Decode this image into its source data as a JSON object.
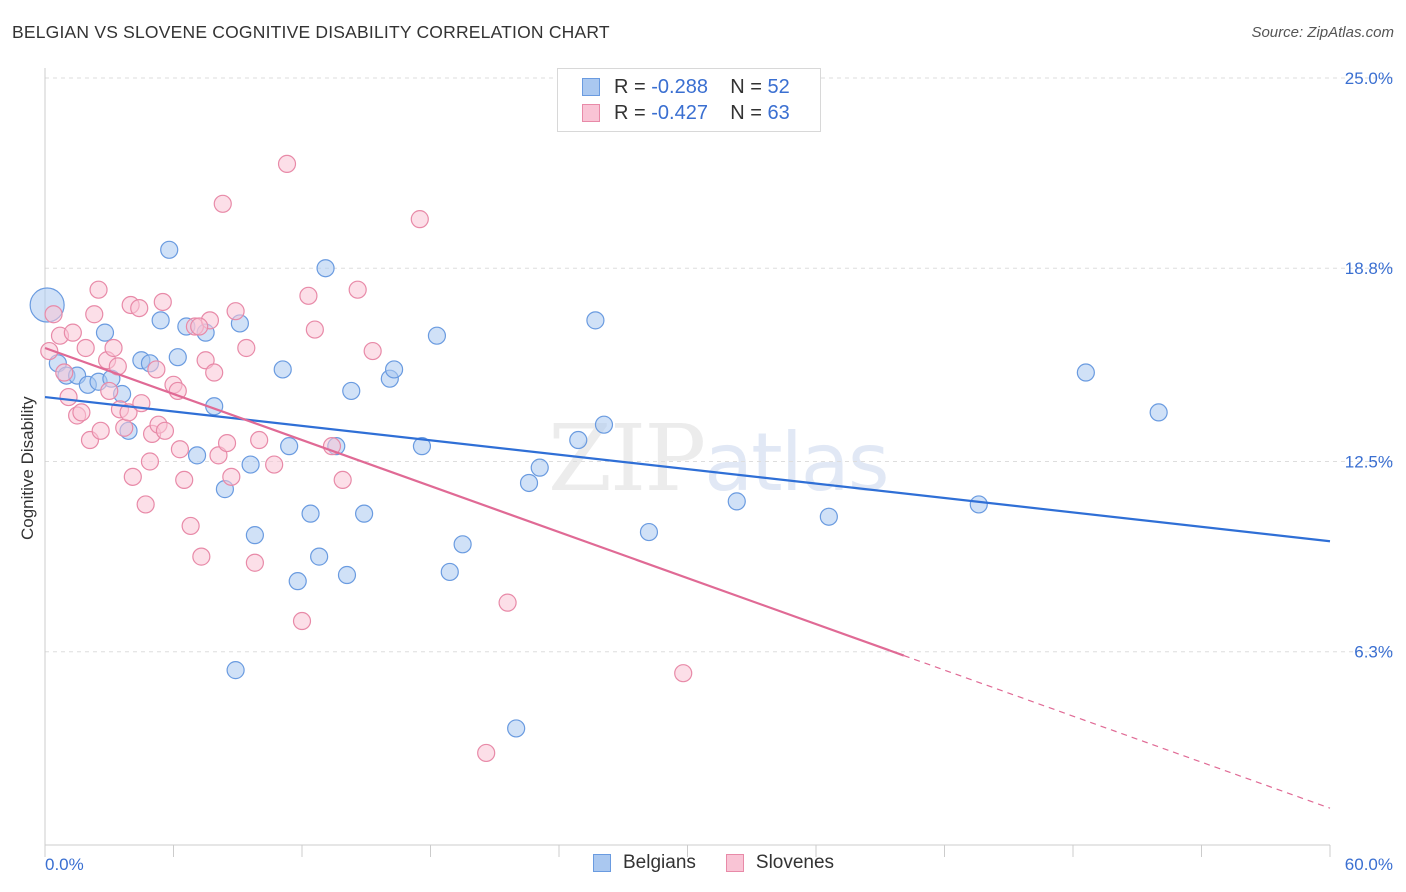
{
  "header": {
    "title": "BELGIAN VS SLOVENE COGNITIVE DISABILITY CORRELATION CHART",
    "source": "Source: ZipAtlas.com"
  },
  "legend": {
    "rows": [
      {
        "r_label": "R =",
        "r_value": "-0.288",
        "n_label": "N =",
        "n_value": "52",
        "color": "#aac8f0",
        "border": "#6a9be0"
      },
      {
        "r_label": "R =",
        "r_value": "-0.427",
        "n_label": "N =",
        "n_value": "63",
        "color": "#f9c4d5",
        "border": "#e88aa8"
      }
    ]
  },
  "bottom_legend": [
    "Belgians",
    "Slovenes"
  ],
  "watermark": {
    "zip": "ZIP",
    "atlas": "atlas"
  },
  "chart_data": {
    "type": "scatter",
    "title": "BELGIAN VS SLOVENE COGNITIVE DISABILITY CORRELATION CHART",
    "xlabel": "",
    "ylabel": "Cognitive Disability",
    "xlim": [
      0,
      60
    ],
    "ylim": [
      0,
      25
    ],
    "x_tick_labels": [
      "0.0%",
      "60.0%"
    ],
    "y_ticks": [
      6.3,
      12.5,
      18.8,
      25.0
    ],
    "y_tick_labels": [
      "6.3%",
      "12.5%",
      "18.8%",
      "25.0%"
    ],
    "grid": "horizontal dashed",
    "series": [
      {
        "name": "Belgians",
        "color": "#6a9be0",
        "fill": "#aac8f0",
        "trend": {
          "x0": 0,
          "y0": 14.6,
          "x1": 60,
          "y1": 9.9,
          "dashed_from": null
        },
        "points": [
          [
            0.1,
            17.6
          ],
          [
            0.6,
            15.7
          ],
          [
            1.0,
            15.3
          ],
          [
            1.5,
            15.3
          ],
          [
            2.0,
            15.0
          ],
          [
            2.5,
            15.1
          ],
          [
            2.8,
            16.7
          ],
          [
            3.1,
            15.2
          ],
          [
            3.6,
            14.7
          ],
          [
            3.9,
            13.5
          ],
          [
            4.5,
            15.8
          ],
          [
            4.9,
            15.7
          ],
          [
            5.4,
            17.1
          ],
          [
            5.8,
            19.4
          ],
          [
            6.2,
            15.9
          ],
          [
            6.6,
            16.9
          ],
          [
            7.1,
            12.7
          ],
          [
            7.5,
            16.7
          ],
          [
            7.9,
            14.3
          ],
          [
            8.4,
            11.6
          ],
          [
            9.1,
            17.0
          ],
          [
            9.6,
            12.4
          ],
          [
            9.8,
            10.1
          ],
          [
            11.1,
            15.5
          ],
          [
            11.4,
            13.0
          ],
          [
            11.8,
            8.6
          ],
          [
            12.4,
            10.8
          ],
          [
            12.8,
            9.4
          ],
          [
            13.1,
            18.8
          ],
          [
            13.6,
            13.0
          ],
          [
            14.1,
            8.8
          ],
          [
            14.3,
            14.8
          ],
          [
            14.9,
            10.8
          ],
          [
            16.1,
            15.2
          ],
          [
            16.3,
            15.5
          ],
          [
            17.6,
            13.0
          ],
          [
            18.3,
            16.6
          ],
          [
            18.9,
            8.9
          ],
          [
            19.5,
            9.8
          ],
          [
            22.0,
            3.8
          ],
          [
            22.6,
            11.8
          ],
          [
            23.1,
            12.3
          ],
          [
            24.9,
            13.2
          ],
          [
            25.7,
            17.1
          ],
          [
            26.1,
            13.7
          ],
          [
            28.2,
            10.2
          ],
          [
            32.3,
            11.2
          ],
          [
            36.6,
            10.7
          ],
          [
            43.6,
            11.1
          ],
          [
            48.6,
            15.4
          ],
          [
            52.0,
            14.1
          ],
          [
            8.9,
            5.7
          ]
        ]
      },
      {
        "name": "Slovenes",
        "color": "#e88aa8",
        "fill": "#f9c4d5",
        "trend": {
          "x0": 0,
          "y0": 16.2,
          "x1": 60,
          "y1": 1.2,
          "dashed_from": 40.1
        },
        "points": [
          [
            0.2,
            16.1
          ],
          [
            0.4,
            17.3
          ],
          [
            0.7,
            16.6
          ],
          [
            0.9,
            15.4
          ],
          [
            1.1,
            14.6
          ],
          [
            1.3,
            16.7
          ],
          [
            1.5,
            14.0
          ],
          [
            1.7,
            14.1
          ],
          [
            1.9,
            16.2
          ],
          [
            2.1,
            13.2
          ],
          [
            2.3,
            17.3
          ],
          [
            2.5,
            18.1
          ],
          [
            2.6,
            13.5
          ],
          [
            2.9,
            15.8
          ],
          [
            3.0,
            14.8
          ],
          [
            3.2,
            16.2
          ],
          [
            3.4,
            15.6
          ],
          [
            3.5,
            14.2
          ],
          [
            3.7,
            13.6
          ],
          [
            3.9,
            14.1
          ],
          [
            4.0,
            17.6
          ],
          [
            4.1,
            12.0
          ],
          [
            4.4,
            17.5
          ],
          [
            4.5,
            14.4
          ],
          [
            4.7,
            11.1
          ],
          [
            4.9,
            12.5
          ],
          [
            5.0,
            13.4
          ],
          [
            5.3,
            13.7
          ],
          [
            5.5,
            17.7
          ],
          [
            5.6,
            13.5
          ],
          [
            6.0,
            15.0
          ],
          [
            6.2,
            14.8
          ],
          [
            6.3,
            12.9
          ],
          [
            6.5,
            11.9
          ],
          [
            6.8,
            10.4
          ],
          [
            7.0,
            16.9
          ],
          [
            7.3,
            9.4
          ],
          [
            7.5,
            15.8
          ],
          [
            7.7,
            17.1
          ],
          [
            7.9,
            15.4
          ],
          [
            8.1,
            12.7
          ],
          [
            8.3,
            20.9
          ],
          [
            8.5,
            13.1
          ],
          [
            8.7,
            12.0
          ],
          [
            8.9,
            17.4
          ],
          [
            9.4,
            16.2
          ],
          [
            9.8,
            9.2
          ],
          [
            10.0,
            13.2
          ],
          [
            10.7,
            12.4
          ],
          [
            11.3,
            22.2
          ],
          [
            12.0,
            7.3
          ],
          [
            12.3,
            17.9
          ],
          [
            12.6,
            16.8
          ],
          [
            13.4,
            13.0
          ],
          [
            13.9,
            11.9
          ],
          [
            14.6,
            18.1
          ],
          [
            15.3,
            16.1
          ],
          [
            17.5,
            20.4
          ],
          [
            20.6,
            3.0
          ],
          [
            21.6,
            7.9
          ],
          [
            29.8,
            5.6
          ],
          [
            7.2,
            16.9
          ],
          [
            5.2,
            15.5
          ]
        ]
      }
    ]
  }
}
